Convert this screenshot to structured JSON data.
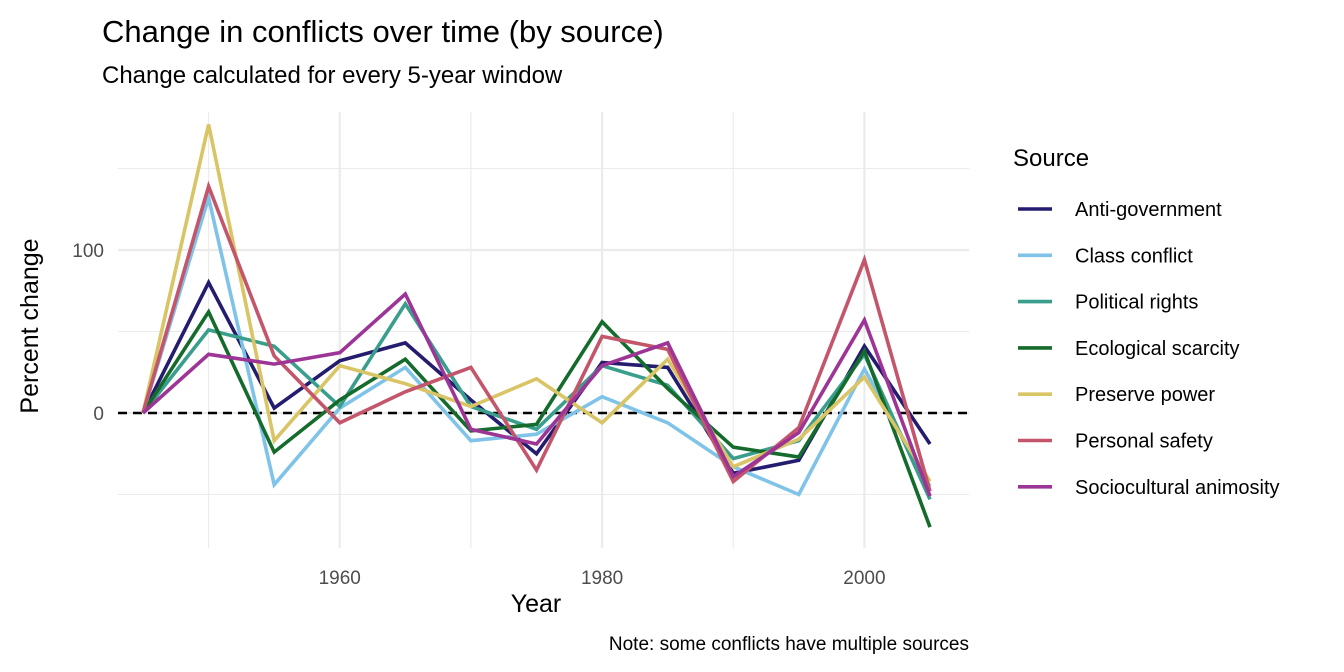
{
  "title": "Change in conflicts over time (by source)",
  "subtitle": "Change calculated for every 5-year window",
  "caption": "Note: some conflicts have multiple sources",
  "chart_data": {
    "type": "line",
    "title": "Change in conflicts over time (by source)",
    "subtitle": "Change calculated for every 5-year window",
    "xlabel": "Year",
    "ylabel": "Percent change",
    "xlim": [
      1945,
      2005
    ],
    "ylim": [
      -70,
      180
    ],
    "x_ticks": [
      1960,
      1980,
      2000
    ],
    "x_tick_labels": [
      "1960",
      "1980",
      "2000"
    ],
    "y_ticks": [
      0,
      100
    ],
    "y_tick_labels": [
      "0",
      "100"
    ],
    "grid": true,
    "reference_line": {
      "y": 0,
      "style": "dashed"
    },
    "legend_title": "Source",
    "legend_position": "right",
    "x": [
      1945,
      1950,
      1955,
      1960,
      1965,
      1970,
      1975,
      1980,
      1985,
      1990,
      1995,
      2000,
      2005
    ],
    "series": [
      {
        "name": "Anti-government",
        "color": "#241c6e",
        "values": [
          0,
          80,
          3,
          32,
          43,
          8,
          -25,
          31,
          28,
          -37,
          -29,
          41,
          -19
        ]
      },
      {
        "name": "Class conflict",
        "color": "#7fc4e8",
        "values": [
          0,
          132,
          -44,
          3,
          28,
          -17,
          -13,
          10,
          -6,
          -33,
          -50,
          27,
          -45
        ]
      },
      {
        "name": "Political rights",
        "color": "#3a9e8c",
        "values": [
          0,
          51,
          41,
          4,
          67,
          4,
          -10,
          29,
          17,
          -28,
          -17,
          36,
          -53
        ]
      },
      {
        "name": "Ecological scarcity",
        "color": "#146b2c",
        "values": [
          0,
          62,
          -24,
          8,
          33,
          -11,
          -7,
          56,
          15,
          -21,
          -27,
          38,
          -70
        ]
      },
      {
        "name": "Preserve power",
        "color": "#d9c466",
        "values": [
          0,
          177,
          -17,
          29,
          18,
          4,
          21,
          -6,
          33,
          -33,
          -16,
          22,
          -42
        ]
      },
      {
        "name": "Personal safety",
        "color": "#c4566c",
        "values": [
          0,
          139,
          35,
          -6,
          13,
          28,
          -35,
          47,
          39,
          -42,
          -9,
          94,
          -48
        ]
      },
      {
        "name": "Sociocultural animosity",
        "color": "#9c3596",
        "values": [
          0,
          36,
          30,
          37,
          73,
          -10,
          -19,
          29,
          43,
          -39,
          -12,
          57,
          -51
        ]
      }
    ]
  }
}
